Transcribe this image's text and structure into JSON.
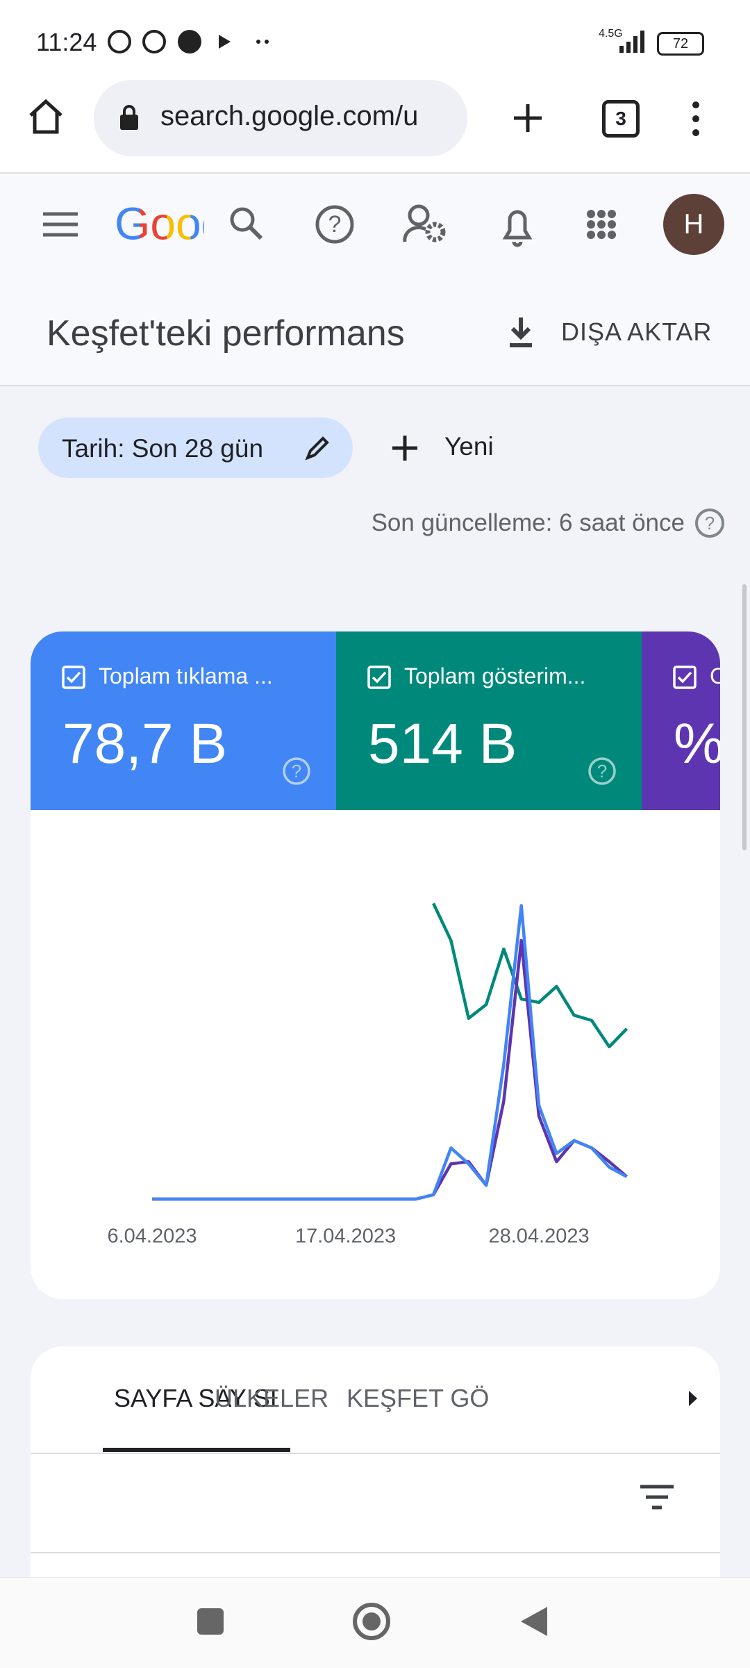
{
  "status_bar": {
    "time": "11:24",
    "network": "4.5G",
    "battery": "72"
  },
  "browser": {
    "url": "search.google.com/u",
    "tab_count": "3"
  },
  "header": {
    "logo": "Goog",
    "avatar": "H",
    "title": "Keşfet'teki performans",
    "export": "DIŞA AKTAR"
  },
  "filters": {
    "date_chip": "Tarih: Son 28 gün",
    "new_button": "Yeni",
    "last_updated": "Son güncelleme: 6 saat önce"
  },
  "metrics": [
    {
      "title": "Toplam tıklama ...",
      "value": "78,7 B"
    },
    {
      "title": "Toplam gösterim...",
      "value": "514 B"
    },
    {
      "title": "C",
      "value": "%"
    }
  ],
  "chart_data": {
    "type": "line",
    "categories": [
      "6.04.2023",
      null,
      null,
      null,
      null,
      null,
      null,
      null,
      null,
      null,
      null,
      "17.04.2023",
      null,
      null,
      null,
      null,
      null,
      null,
      null,
      null,
      null,
      null,
      "28.04.2023",
      null,
      null,
      null,
      null,
      null
    ],
    "ylim": [
      0,
      100
    ],
    "series": [
      {
        "color": "#00897b",
        "values": [
          null,
          null,
          null,
          null,
          null,
          null,
          null,
          null,
          null,
          null,
          null,
          null,
          null,
          null,
          null,
          null,
          96.5,
          84.4,
          59,
          63.5,
          81.6,
          65.3,
          64.2,
          69.4,
          60,
          58.3,
          49.7,
          55.6
        ]
      },
      {
        "color": "#5e35b1",
        "values": [
          0,
          0,
          0,
          0,
          0,
          0,
          0,
          0,
          0,
          0,
          0,
          0,
          0,
          0,
          0,
          0,
          1.4,
          11.5,
          12.2,
          4.5,
          32,
          84.4,
          27.1,
          12.2,
          19.1,
          16.7,
          12.2,
          7.3
        ]
      },
      {
        "color": "#4285f4",
        "values": [
          0,
          0,
          0,
          0,
          0,
          0,
          0,
          0,
          0,
          0,
          0,
          0,
          0,
          0,
          0,
          0,
          1.4,
          16.7,
          11.5,
          4.5,
          44,
          95.8,
          30.6,
          14.9,
          19.1,
          16.7,
          10.4,
          7.3
        ]
      }
    ]
  },
  "tabs": [
    "SAYFA SAYISI",
    "ÜLKELER",
    "KEŞFET GÖ"
  ]
}
